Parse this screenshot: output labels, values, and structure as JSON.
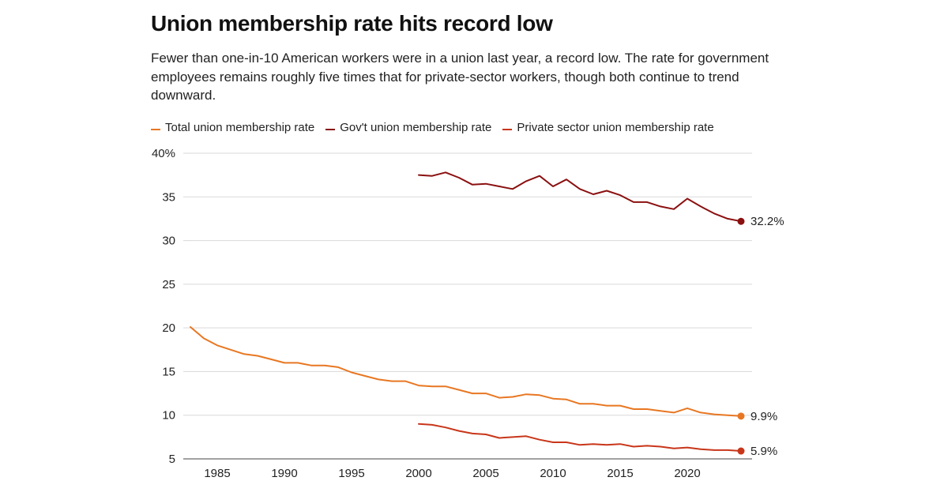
{
  "header": {
    "title": "Union membership rate hits record low",
    "subtitle": "Fewer than one-in-10 American workers were in a union last year, a record low. The rate for government employees remains roughly five times that for private-sector workers, though both continue to trend downward."
  },
  "colors": {
    "total": "#e87722",
    "government": "#8b1010",
    "private": "#c8361a",
    "grid": "#d9d9d9",
    "axis": "#444444"
  },
  "chart_data": {
    "type": "line",
    "title": "Union membership rate hits record low",
    "xlabel": "",
    "ylabel": "",
    "xlim": [
      1983,
      2024
    ],
    "ylim": [
      5,
      40
    ],
    "x_ticks": [
      1985,
      1990,
      1995,
      2000,
      2005,
      2010,
      2015,
      2020
    ],
    "y_ticks": [
      {
        "value": 40,
        "label": "40%"
      },
      {
        "value": 35,
        "label": "35"
      },
      {
        "value": 30,
        "label": "30"
      },
      {
        "value": 25,
        "label": "25"
      },
      {
        "value": 20,
        "label": "20"
      },
      {
        "value": 15,
        "label": "15"
      },
      {
        "value": 10,
        "label": "10"
      },
      {
        "value": 5,
        "label": "5"
      }
    ],
    "grid": true,
    "legend_position": "top-left",
    "series": [
      {
        "name": "Total union membership rate",
        "key": "total",
        "end_label": "9.9%",
        "points": [
          [
            1983,
            20.1
          ],
          [
            1984,
            18.8
          ],
          [
            1985,
            18.0
          ],
          [
            1986,
            17.5
          ],
          [
            1987,
            17.0
          ],
          [
            1988,
            16.8
          ],
          [
            1989,
            16.4
          ],
          [
            1990,
            16.0
          ],
          [
            1991,
            16.0
          ],
          [
            1992,
            15.7
          ],
          [
            1993,
            15.7
          ],
          [
            1994,
            15.5
          ],
          [
            1995,
            14.9
          ],
          [
            1996,
            14.5
          ],
          [
            1997,
            14.1
          ],
          [
            1998,
            13.9
          ],
          [
            1999,
            13.9
          ],
          [
            2000,
            13.4
          ],
          [
            2001,
            13.3
          ],
          [
            2002,
            13.3
          ],
          [
            2003,
            12.9
          ],
          [
            2004,
            12.5
          ],
          [
            2005,
            12.5
          ],
          [
            2006,
            12.0
          ],
          [
            2007,
            12.1
          ],
          [
            2008,
            12.4
          ],
          [
            2009,
            12.3
          ],
          [
            2010,
            11.9
          ],
          [
            2011,
            11.8
          ],
          [
            2012,
            11.3
          ],
          [
            2013,
            11.3
          ],
          [
            2014,
            11.1
          ],
          [
            2015,
            11.1
          ],
          [
            2016,
            10.7
          ],
          [
            2017,
            10.7
          ],
          [
            2018,
            10.5
          ],
          [
            2019,
            10.3
          ],
          [
            2020,
            10.8
          ],
          [
            2021,
            10.3
          ],
          [
            2022,
            10.1
          ],
          [
            2023,
            10.0
          ],
          [
            2024,
            9.9
          ]
        ]
      },
      {
        "name": "Gov't union membership rate",
        "key": "government",
        "end_label": "32.2%",
        "points": [
          [
            2000,
            37.5
          ],
          [
            2001,
            37.4
          ],
          [
            2002,
            37.8
          ],
          [
            2003,
            37.2
          ],
          [
            2004,
            36.4
          ],
          [
            2005,
            36.5
          ],
          [
            2006,
            36.2
          ],
          [
            2007,
            35.9
          ],
          [
            2008,
            36.8
          ],
          [
            2009,
            37.4
          ],
          [
            2010,
            36.2
          ],
          [
            2011,
            37.0
          ],
          [
            2012,
            35.9
          ],
          [
            2013,
            35.3
          ],
          [
            2014,
            35.7
          ],
          [
            2015,
            35.2
          ],
          [
            2016,
            34.4
          ],
          [
            2017,
            34.4
          ],
          [
            2018,
            33.9
          ],
          [
            2019,
            33.6
          ],
          [
            2020,
            34.8
          ],
          [
            2021,
            33.9
          ],
          [
            2022,
            33.1
          ],
          [
            2023,
            32.5
          ],
          [
            2024,
            32.2
          ]
        ]
      },
      {
        "name": "Private sector union membership rate",
        "key": "private",
        "end_label": "5.9%",
        "points": [
          [
            2000,
            9.0
          ],
          [
            2001,
            8.9
          ],
          [
            2002,
            8.6
          ],
          [
            2003,
            8.2
          ],
          [
            2004,
            7.9
          ],
          [
            2005,
            7.8
          ],
          [
            2006,
            7.4
          ],
          [
            2007,
            7.5
          ],
          [
            2008,
            7.6
          ],
          [
            2009,
            7.2
          ],
          [
            2010,
            6.9
          ],
          [
            2011,
            6.9
          ],
          [
            2012,
            6.6
          ],
          [
            2013,
            6.7
          ],
          [
            2014,
            6.6
          ],
          [
            2015,
            6.7
          ],
          [
            2016,
            6.4
          ],
          [
            2017,
            6.5
          ],
          [
            2018,
            6.4
          ],
          [
            2019,
            6.2
          ],
          [
            2020,
            6.3
          ],
          [
            2021,
            6.1
          ],
          [
            2022,
            6.0
          ],
          [
            2023,
            6.0
          ],
          [
            2024,
            5.9
          ]
        ]
      }
    ]
  }
}
